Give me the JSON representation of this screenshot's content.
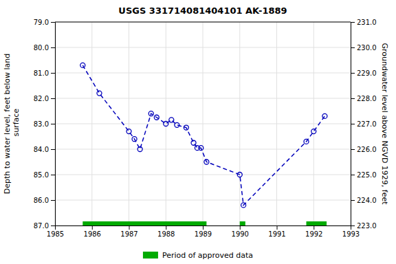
{
  "chart_data": {
    "type": "line",
    "title": "USGS 331714081404101 AK-1889",
    "ylabel": "Depth to water level, feet below land\n surface",
    "y2label": "Groundwater level above NGVD 1929, feet",
    "x": [
      1985.75,
      1986.2,
      1987.0,
      1987.15,
      1987.3,
      1987.6,
      1987.75,
      1988.0,
      1988.15,
      1988.3,
      1988.55,
      1988.75,
      1988.85,
      1988.95,
      1989.1,
      1990.0,
      1990.1,
      1991.8,
      1992.0,
      1992.3
    ],
    "series": [
      {
        "color": "#0000BB",
        "marker": "circle",
        "line_style": "dashed",
        "values": [
          80.7,
          81.8,
          83.3,
          83.6,
          84.0,
          82.6,
          82.75,
          83.0,
          82.85,
          83.05,
          83.15,
          83.75,
          83.95,
          83.95,
          84.5,
          85.0,
          86.2,
          83.7,
          83.3,
          82.7
        ]
      }
    ],
    "approved_periods": {
      "name": "Period of approved data",
      "color": "#00aa00",
      "ranges": [
        [
          1985.75,
          1989.1
        ],
        [
          1990.0,
          1990.15
        ],
        [
          1991.8,
          1992.35
        ]
      ]
    },
    "xlim": [
      1985,
      1993
    ],
    "xticks": [
      1985,
      1986,
      1987,
      1988,
      1989,
      1990,
      1991,
      1992,
      1993
    ],
    "ylim": [
      87.0,
      79.0
    ],
    "yticks": [
      {
        "value": 79.0,
        "label": "79.0"
      },
      {
        "value": 80.0,
        "label": "80.0"
      },
      {
        "value": 81.0,
        "label": "81.0"
      },
      {
        "value": 82.0,
        "label": "82.0"
      },
      {
        "value": 83.0,
        "label": "83.0"
      },
      {
        "value": 84.0,
        "label": "84.0"
      },
      {
        "value": 85.0,
        "label": "85.0"
      },
      {
        "value": 86.0,
        "label": "86.0"
      },
      {
        "value": 87.0,
        "label": "87.0"
      }
    ],
    "y2lim": [
      223.0,
      231.0
    ],
    "y2ticks": [
      {
        "value": 223.0,
        "label": "223.0"
      },
      {
        "value": 224.0,
        "label": "224.0"
      },
      {
        "value": 225.0,
        "label": "225.0"
      },
      {
        "value": 226.0,
        "label": "226.0"
      },
      {
        "value": 227.0,
        "label": "227.0"
      },
      {
        "value": 228.0,
        "label": "228.0"
      },
      {
        "value": 229.0,
        "label": "229.0"
      },
      {
        "value": 230.0,
        "label": "230.0"
      },
      {
        "value": 231.0,
        "label": "231.0"
      }
    ],
    "grid": true,
    "legend": "bottom"
  }
}
